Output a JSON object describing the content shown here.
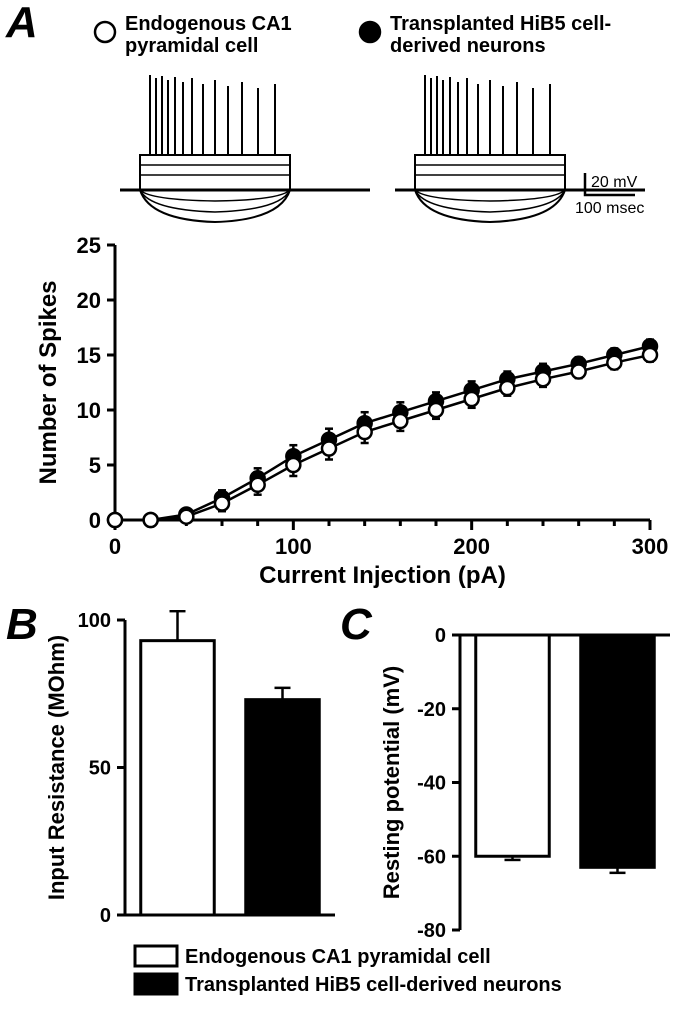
{
  "legend_top": {
    "open_label": "Endogenous CA1 pyramidal cell",
    "filled_label": "Transplanted HiB5 cell-derived neurons"
  },
  "panelA": {
    "label": "A",
    "label_fontsize": 44,
    "type": "scatter-line",
    "xlabel": "Current Injection (pA)",
    "ylabel": "Number of Spikes",
    "label_fontsize_axis": 24,
    "tick_fontsize": 22,
    "xlim": [
      0,
      300
    ],
    "ylim": [
      0,
      25
    ],
    "xtick_step": 100,
    "xtick_minor_step": 20,
    "ytick_step": 5,
    "marker_radius": 7,
    "x": [
      0,
      20,
      40,
      60,
      80,
      100,
      120,
      140,
      160,
      180,
      200,
      220,
      240,
      260,
      280,
      300
    ],
    "series_open": [
      0,
      0,
      0.3,
      1.5,
      3.2,
      5.0,
      6.5,
      8.0,
      9.0,
      10.0,
      11.0,
      12.0,
      12.8,
      13.5,
      14.3,
      15.0
    ],
    "series_open_err": [
      0,
      0,
      0.3,
      0.7,
      0.9,
      1.0,
      1.0,
      1.0,
      0.9,
      0.8,
      0.8,
      0.7,
      0.7,
      0.6,
      0.6,
      0.6
    ],
    "series_filled": [
      0,
      0,
      0.5,
      2.0,
      3.8,
      5.8,
      7.3,
      8.8,
      9.8,
      10.8,
      11.8,
      12.8,
      13.5,
      14.2,
      15.0,
      15.8
    ],
    "series_filled_err": [
      0,
      0,
      0.3,
      0.7,
      0.9,
      1.0,
      1.0,
      1.0,
      0.9,
      0.8,
      0.8,
      0.7,
      0.7,
      0.6,
      0.6,
      0.6
    ],
    "scale_bar": {
      "v_label": "20 mV",
      "h_label": "100 msec",
      "fontsize": 16
    },
    "colors": {
      "axis": "#000000",
      "series": "#000000",
      "background": "#ffffff"
    }
  },
  "panelB": {
    "label": "B",
    "label_fontsize": 44,
    "type": "bar",
    "ylabel": "Input Resistance (MOhm)",
    "label_fontsize_axis": 22,
    "tick_fontsize": 20,
    "ylim": [
      0,
      100
    ],
    "ytick_step": 50,
    "bars": [
      {
        "key": "open",
        "value": 93,
        "err": 10
      },
      {
        "key": "filled",
        "value": 73,
        "err": 4
      }
    ],
    "bar_width": 0.7,
    "colors": {
      "open": "#ffffff",
      "filled": "#000000",
      "stroke": "#000000"
    }
  },
  "panelC": {
    "label": "C",
    "label_fontsize": 44,
    "type": "bar",
    "ylabel": "Resting potential (mV)",
    "label_fontsize_axis": 22,
    "tick_fontsize": 20,
    "ylim": [
      -80,
      0
    ],
    "ytick_step": 20,
    "bars": [
      {
        "key": "open",
        "value": -60,
        "err": 1
      },
      {
        "key": "filled",
        "value": -63,
        "err": 1.5
      }
    ],
    "bar_width": 0.7,
    "colors": {
      "open": "#ffffff",
      "filled": "#000000",
      "stroke": "#000000"
    }
  },
  "legend_bottom": {
    "open_label": "Endogenous CA1 pyramidal cell",
    "filled_label": "Transplanted HiB5 cell-derived neurons",
    "fontsize": 20
  }
}
